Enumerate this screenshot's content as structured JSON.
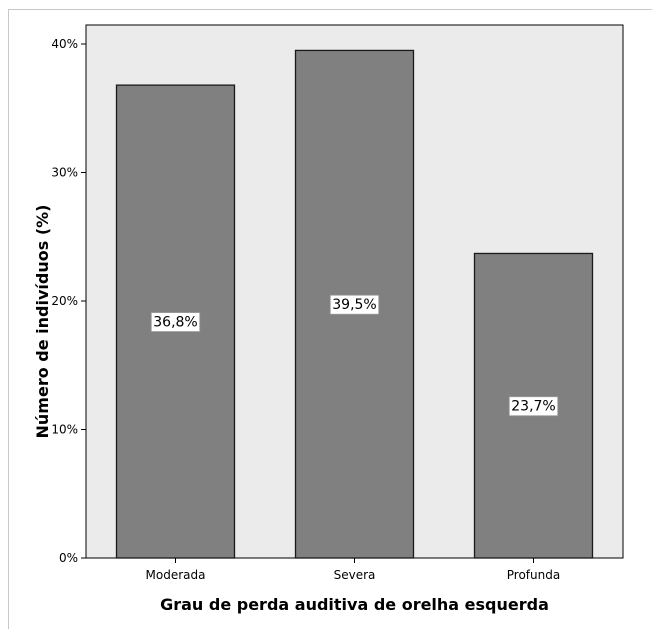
{
  "chart_data": {
    "type": "bar",
    "categories": [
      "Moderada",
      "Severa",
      "Profunda"
    ],
    "values": [
      36.8,
      39.5,
      23.7
    ],
    "data_labels": [
      "36,8%",
      "39,5%",
      "23,7%"
    ],
    "xlabel": "Grau de perda auditiva de orelha esquerda",
    "ylabel": "Número de indivíduos (%)",
    "ylim": [
      0,
      40
    ],
    "yticks": [
      0,
      10,
      20,
      30,
      40
    ],
    "ytick_labels": [
      "0%",
      "10%",
      "20%",
      "30%",
      "40%"
    ],
    "grid": false,
    "legend": "none",
    "colors": {
      "bar_fill": "#808080",
      "bar_stroke": "#1a1a1a",
      "plot_background": "#ebebeb",
      "label_background": "#ffffff"
    }
  }
}
